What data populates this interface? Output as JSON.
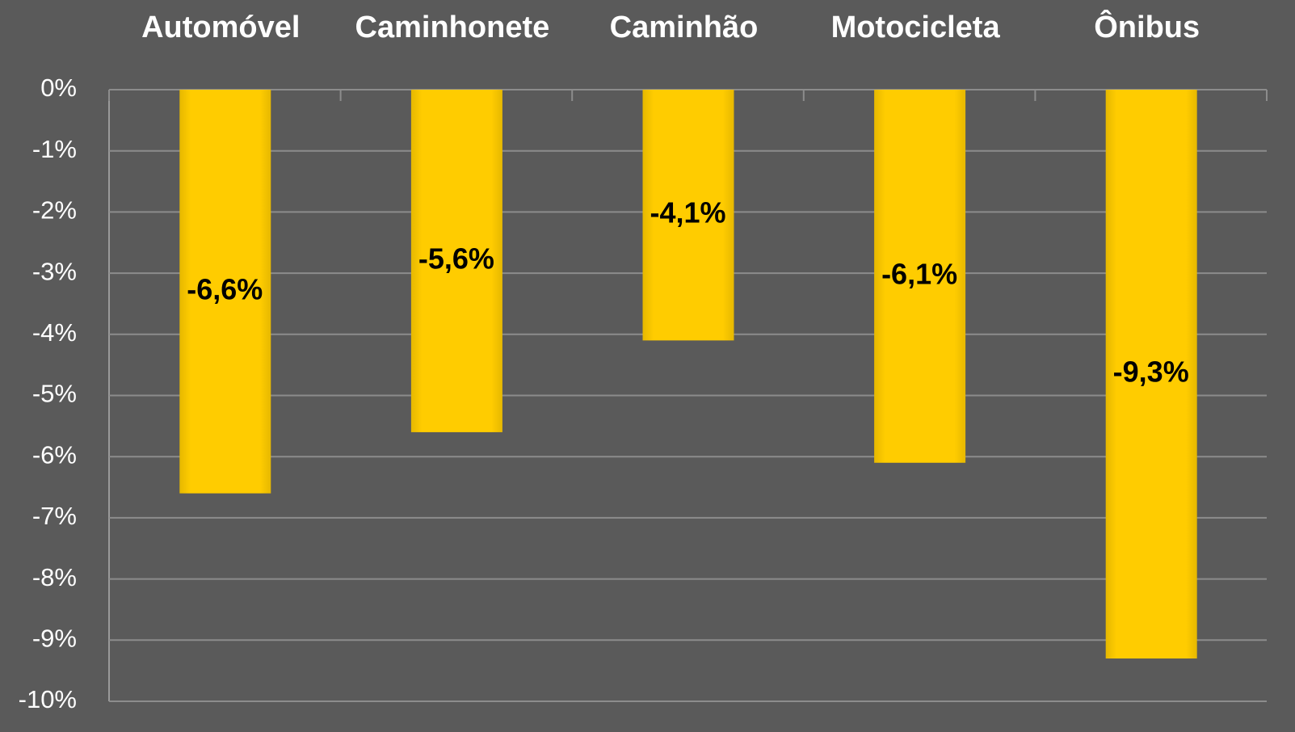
{
  "chart_data": {
    "type": "bar",
    "categories": [
      "Automóvel",
      "Caminhonete",
      "Caminhão",
      "Motocicleta",
      "Ônibus"
    ],
    "values": [
      -6.6,
      -5.6,
      -4.1,
      -6.1,
      -9.3
    ],
    "value_labels": [
      "-6,6%",
      "-5,6%",
      "-4,1%",
      "-6,1%",
      "-9,3%"
    ],
    "color": "#ffcc00",
    "ylim": [
      -10,
      0
    ],
    "yticks": [
      {
        "value": 0,
        "label": "0%"
      },
      {
        "value": -1,
        "label": "-1%"
      },
      {
        "value": -2,
        "label": "-2%"
      },
      {
        "value": -3,
        "label": "-3%"
      },
      {
        "value": -4,
        "label": "-4%"
      },
      {
        "value": -5,
        "label": "-5%"
      },
      {
        "value": -6,
        "label": "-6%"
      },
      {
        "value": -7,
        "label": "-7%"
      },
      {
        "value": -8,
        "label": "-8%"
      },
      {
        "value": -9,
        "label": "-9%"
      },
      {
        "value": -10,
        "label": "-10%"
      }
    ],
    "grid": true
  }
}
